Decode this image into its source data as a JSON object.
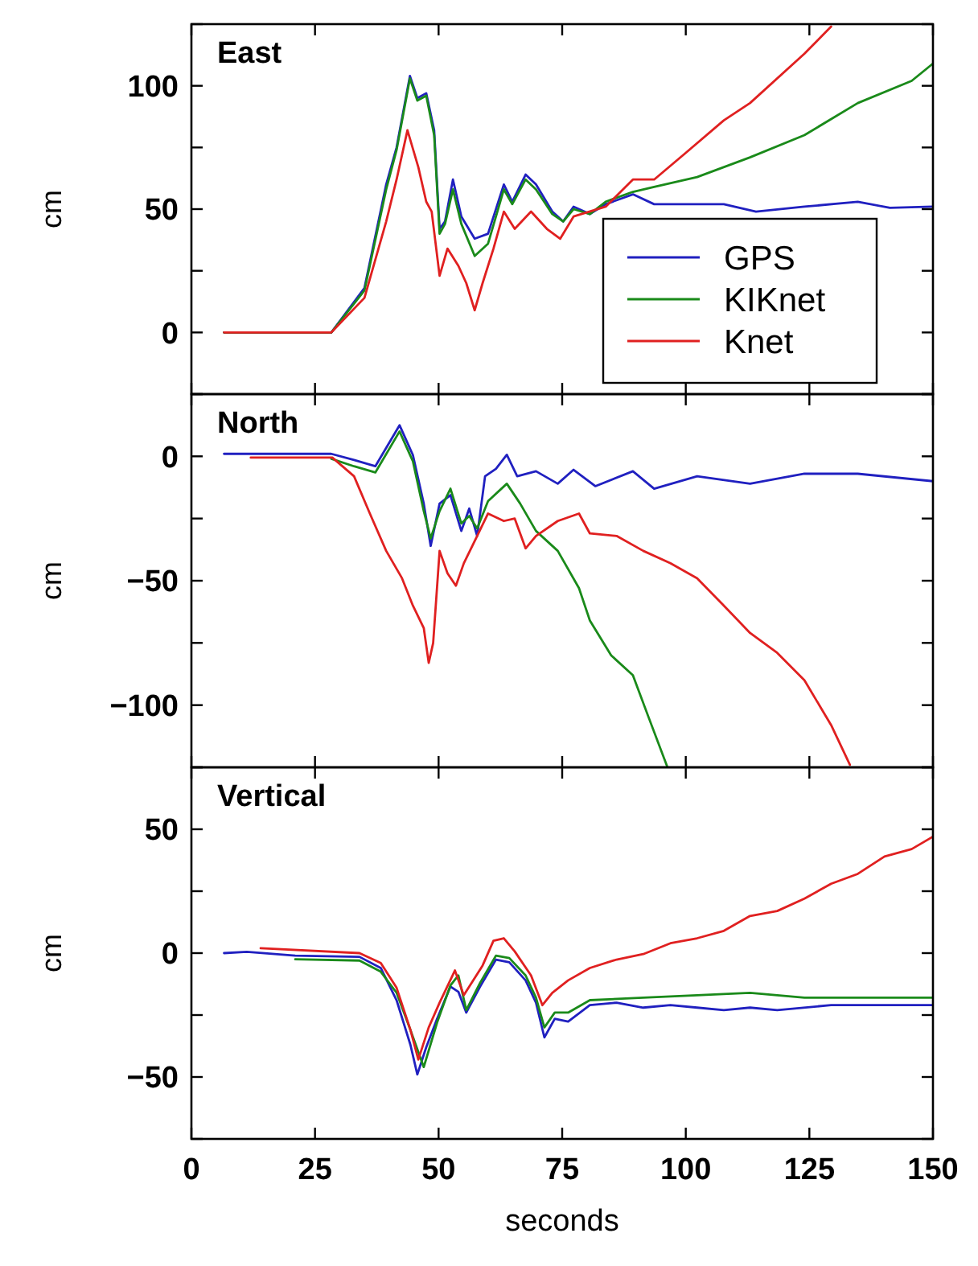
{
  "chart_data": [
    {
      "type": "line",
      "title": "East",
      "ylabel": "cm",
      "xlim": [
        0,
        150
      ],
      "xticks": [
        0,
        25,
        50,
        75,
        100,
        125,
        150
      ],
      "ylim": [
        -25,
        125
      ],
      "yticks": [
        {
          "value": -25,
          "label": null
        },
        0,
        {
          "value": 25,
          "label": null
        },
        50,
        {
          "value": 75,
          "label": null
        },
        100,
        {
          "value": 125,
          "label": null
        }
      ],
      "tick_labels": "y",
      "legend": "bottom right",
      "series": [
        {
          "name": "GPS",
          "color": "#2020c0",
          "x": [
            6.6,
            28.3,
            35,
            39.4,
            41.5,
            44.2,
            45.7,
            47.5,
            49.1,
            50.2,
            51.3,
            52.9,
            54.6,
            57.3,
            60,
            63.2,
            64.9,
            67.6,
            69.7,
            73,
            75.2,
            77.3,
            80.6,
            83.8,
            89.3,
            93.6,
            102.3,
            107.7,
            114.2,
            124,
            134.8,
            141.3,
            150
          ],
          "values": [
            0,
            0,
            18,
            60,
            75,
            104,
            95,
            97,
            82,
            42,
            45,
            62,
            47,
            38,
            40,
            60,
            53,
            64,
            60,
            49,
            45,
            51,
            48,
            52,
            56,
            52,
            52,
            52,
            49,
            51,
            53,
            50.5,
            51
          ]
        },
        {
          "name": "KIKnet",
          "color": "#1a8a1a",
          "x": [
            6.6,
            28.3,
            35,
            39.4,
            41.5,
            44.2,
            45.7,
            47.5,
            49.1,
            50.2,
            51.3,
            52.9,
            54.6,
            57.3,
            60,
            63.2,
            64.9,
            67.6,
            69.7,
            73,
            75.2,
            77.3,
            80.6,
            83.8,
            89.3,
            93.6,
            102.3,
            113,
            124,
            134.8,
            145.7,
            150
          ],
          "values": [
            0,
            0,
            17,
            58,
            74,
            103,
            94,
            96,
            80,
            40,
            44,
            58,
            44,
            31,
            36,
            58,
            52,
            62,
            58,
            48,
            45,
            50,
            48,
            53,
            57,
            59,
            63,
            71,
            80,
            93,
            102,
            109
          ]
        },
        {
          "name": "Knet",
          "color": "#e02020",
          "x": [
            6.6,
            28.3,
            35,
            39.4,
            41.5,
            43.7,
            45.9,
            47.5,
            48.6,
            50.2,
            51.8,
            54,
            55.6,
            57.3,
            58.9,
            61.1,
            63.2,
            65.4,
            68.7,
            71.9,
            74.6,
            77.3,
            83.8,
            89.3,
            93.6,
            100.1,
            107.7,
            113,
            124,
            129.4
          ],
          "values": [
            0,
            0,
            14,
            45,
            62,
            82,
            67,
            53,
            49,
            23,
            34,
            27,
            20,
            9,
            20,
            34,
            49,
            42,
            49,
            42,
            38,
            47,
            51,
            62,
            62,
            73,
            86,
            93,
            113,
            124
          ]
        }
      ]
    },
    {
      "type": "line",
      "title": "North",
      "ylabel": "cm",
      "xlim": [
        0,
        150
      ],
      "xticks": [
        0,
        25,
        50,
        75,
        100,
        125,
        150
      ],
      "ylim": [
        -125,
        25
      ],
      "yticks": [
        {
          "value": -125,
          "label": null
        },
        -100,
        {
          "value": -75,
          "label": null
        },
        -50,
        {
          "value": -25,
          "label": null
        },
        0,
        {
          "value": 25,
          "label": null
        }
      ],
      "tick_labels": "y",
      "series": [
        {
          "color": "#2020c0",
          "x": [
            6.6,
            28.3,
            32.9,
            37.2,
            42.1,
            44.8,
            47,
            48.4,
            50.2,
            52.4,
            54.6,
            56.2,
            57.8,
            59.4,
            61.6,
            63.8,
            65.9,
            69.7,
            74.1,
            77.3,
            81.7,
            89.3,
            93.6,
            102.3,
            113,
            124,
            134.8,
            150
          ],
          "values": [
            1,
            1,
            -1.5,
            -4,
            12.5,
            0.5,
            -19,
            -36,
            -19,
            -15.6,
            -30,
            -21,
            -32,
            -8,
            -5,
            0.6,
            -8,
            -6,
            -11,
            -5.4,
            -12,
            -6,
            -13,
            -8,
            -11,
            -7,
            -7,
            -10
          ]
        },
        {
          "color": "#1a8a1a",
          "x": [
            28.3,
            32.9,
            37.2,
            42.1,
            44.8,
            47,
            48.4,
            50.2,
            52.4,
            54.6,
            56.2,
            57.8,
            60,
            63.8,
            66.5,
            69.7,
            74.1,
            78.4,
            80.6,
            84.9,
            89.3,
            92.5,
            96.3
          ],
          "values": [
            -1,
            -4,
            -6.5,
            10,
            -2,
            -22,
            -33,
            -22,
            -13,
            -27,
            -24,
            -29,
            -18,
            -11,
            -19,
            -30,
            -38,
            -53,
            -66,
            -80,
            -88,
            -105,
            -125
          ]
        },
        {
          "color": "#e02020",
          "x": [
            12,
            28.5,
            32.9,
            36.1,
            39.4,
            42.6,
            44.8,
            47,
            48,
            48.9,
            50.2,
            51.8,
            53.5,
            55.1,
            57.8,
            60,
            63.2,
            65.4,
            67.6,
            69.7,
            74.1,
            78.4,
            80.6,
            86,
            91.4,
            96.9,
            102.3,
            107.7,
            113,
            118.5,
            124,
            129.4,
            133.2
          ],
          "values": [
            -0.5,
            -0.5,
            -8,
            -23,
            -38,
            -49,
            -60,
            -69,
            -83,
            -75,
            -38,
            -47,
            -52,
            -43,
            -32,
            -23,
            -26,
            -25,
            -37,
            -32,
            -26,
            -23,
            -31,
            -32,
            -38,
            -43,
            -49,
            -60,
            -71,
            -79,
            -90,
            -108,
            -124
          ]
        }
      ]
    },
    {
      "type": "line",
      "title": "Vertical",
      "ylabel": "cm",
      "xlabel": "seconds",
      "xlim": [
        0,
        150
      ],
      "xticks": [
        0,
        25,
        50,
        75,
        100,
        125,
        150
      ],
      "ylim": [
        -75,
        75
      ],
      "yticks": [
        {
          "value": -75,
          "label": null
        },
        -50,
        {
          "value": -25,
          "label": null
        },
        0,
        {
          "value": 25,
          "label": null
        },
        50,
        {
          "value": 75,
          "label": null
        }
      ],
      "series": [
        {
          "color": "#2020c0",
          "x": [
            6.6,
            11.2,
            21,
            34,
            38.3,
            41.5,
            44.3,
            45.7,
            47.5,
            49.7,
            52.4,
            54,
            55.6,
            58.4,
            61.6,
            64.3,
            67.6,
            69.7,
            71.4,
            73.5,
            76.2,
            80.6,
            86,
            91.4,
            96.9,
            102.3,
            107.7,
            113,
            118.5,
            129.4,
            140.2,
            150
          ],
          "values": [
            0,
            0.5,
            -1,
            -1.5,
            -6,
            -19,
            -37,
            -49,
            -38,
            -26.5,
            -13.5,
            -15.6,
            -24,
            -13.5,
            -2.6,
            -3.7,
            -11,
            -20,
            -34,
            -26.5,
            -27.6,
            -21,
            -20,
            -22,
            -21,
            -22,
            -23,
            -22,
            -23,
            -21,
            -21,
            -21
          ]
        },
        {
          "color": "#1a8a1a",
          "x": [
            21,
            34,
            38.3,
            41.5,
            44.3,
            47,
            49.7,
            52.4,
            54,
            55.6,
            58.4,
            61.6,
            64.3,
            67.6,
            69.7,
            71.4,
            73.5,
            76.2,
            80.6,
            91.4,
            102.3,
            113,
            124,
            134.8,
            150
          ],
          "values": [
            -2.5,
            -3,
            -7.5,
            -16,
            -31,
            -46,
            -28,
            -13,
            -9,
            -23,
            -12,
            -1,
            -2,
            -9,
            -18,
            -30,
            -24,
            -24,
            -19,
            -18,
            -17,
            -16,
            -18,
            -18,
            -18
          ]
        },
        {
          "color": "#e02020",
          "x": [
            14,
            34,
            38.3,
            41.5,
            44.3,
            45.9,
            48,
            50.2,
            53.3,
            55.1,
            58.9,
            61.1,
            63.2,
            65.4,
            68.7,
            71,
            73,
            76.2,
            80.6,
            86,
            91.4,
            96.9,
            102.3,
            107.7,
            113,
            118.5,
            124,
            129.4,
            134.8,
            140.2,
            145.7,
            150
          ],
          "values": [
            2,
            0,
            -4,
            -14,
            -31,
            -43,
            -30,
            -20,
            -7,
            -17,
            -5,
            5,
            6,
            0.7,
            -9,
            -21,
            -16,
            -11,
            -6,
            -2.6,
            -0.4,
            4,
            6,
            9,
            15,
            17,
            22,
            28,
            32,
            39,
            42,
            47
          ]
        }
      ]
    }
  ]
}
